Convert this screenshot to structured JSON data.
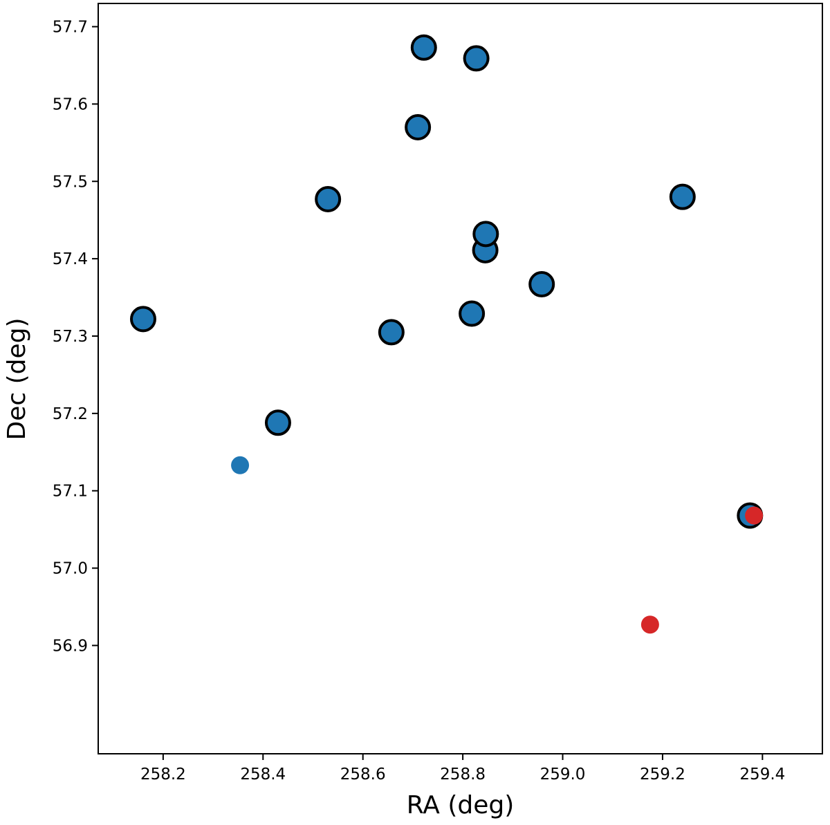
{
  "chart_data": {
    "type": "scatter",
    "title": "",
    "xlabel": "RA (deg)",
    "ylabel": "Dec (deg)",
    "xlim": [
      258.07,
      259.52
    ],
    "ylim": [
      56.76,
      57.73
    ],
    "xticks": [
      "258.2",
      "258.4",
      "258.6",
      "258.8",
      "259.0",
      "259.2",
      "259.4"
    ],
    "yticks": [
      "56.9",
      "57.0",
      "57.1",
      "57.2",
      "57.3",
      "57.4",
      "57.5",
      "57.6",
      "57.7"
    ],
    "grid": false,
    "legend": "none",
    "series": [
      {
        "color": "#1f77b4",
        "edgecolor": "#000000",
        "marker": "large-outlined",
        "points": [
          {
            "x": 258.16,
            "y": 57.322
          },
          {
            "x": 258.43,
            "y": 57.188
          },
          {
            "x": 258.53,
            "y": 57.477
          },
          {
            "x": 258.657,
            "y": 57.305
          },
          {
            "x": 258.71,
            "y": 57.57
          },
          {
            "x": 258.722,
            "y": 57.673
          },
          {
            "x": 258.818,
            "y": 57.329
          },
          {
            "x": 258.827,
            "y": 57.659
          },
          {
            "x": 258.845,
            "y": 57.411
          },
          {
            "x": 258.846,
            "y": 57.432
          },
          {
            "x": 258.958,
            "y": 57.367
          },
          {
            "x": 259.24,
            "y": 57.48
          },
          {
            "x": 259.375,
            "y": 57.068
          }
        ]
      },
      {
        "color": "#1f77b4",
        "marker": "small",
        "points": [
          {
            "x": 258.354,
            "y": 57.133
          }
        ]
      },
      {
        "color": "#d62728",
        "marker": "small",
        "points": [
          {
            "x": 259.175,
            "y": 56.927
          },
          {
            "x": 259.383,
            "y": 57.068
          }
        ]
      }
    ]
  }
}
